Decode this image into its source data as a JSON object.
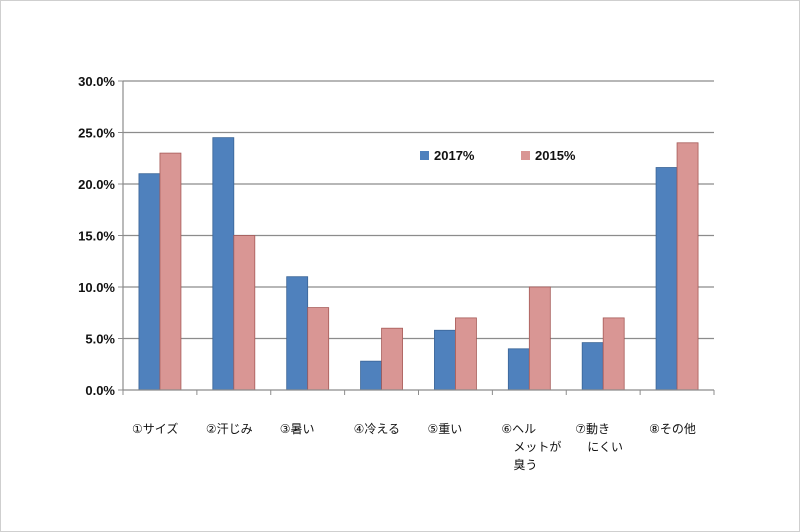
{
  "chart_data": {
    "type": "bar",
    "categories": [
      [
        "①サイズ"
      ],
      [
        "②汗じみ"
      ],
      [
        "③暑い"
      ],
      [
        "④冷える"
      ],
      [
        "⑤重い"
      ],
      [
        "⑥ヘル",
        "メットが",
        "臭う"
      ],
      [
        "⑦動き",
        "にくい"
      ],
      [
        "⑧その他"
      ]
    ],
    "series": [
      {
        "name": "2017%",
        "color": "#4f81bd",
        "values": [
          21.0,
          24.5,
          11.0,
          2.8,
          5.8,
          4.0,
          4.6,
          21.6
        ]
      },
      {
        "name": "2015%",
        "color": "#d99694",
        "values": [
          23.0,
          15.0,
          8.0,
          6.0,
          7.0,
          10.0,
          7.0,
          24.0
        ]
      }
    ],
    "yticks": [
      "0.0%",
      "5.0%",
      "10.0%",
      "15.0%",
      "20.0%",
      "25.0%",
      "30.0%"
    ],
    "ylim": [
      0,
      30
    ],
    "grid": true,
    "legend": "top-center"
  }
}
